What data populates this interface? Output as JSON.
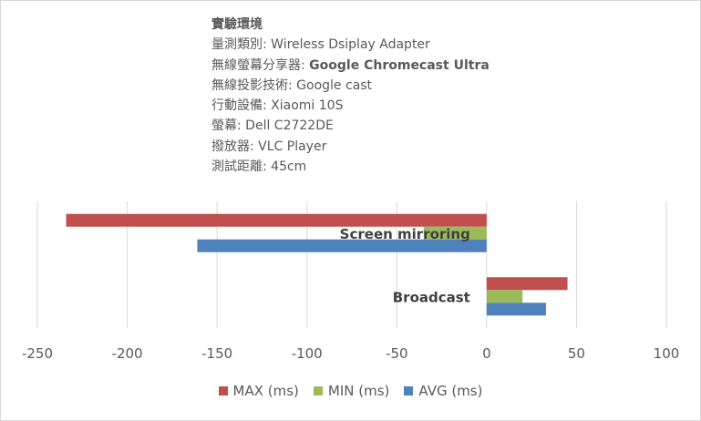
{
  "info": {
    "title": "實驗環境",
    "lines": [
      {
        "label": "量測類別: ",
        "value": "Wireless Dsiplay Adapter",
        "bold": false
      },
      {
        "label": "無線螢幕分享器: ",
        "value": "Google Chromecast Ultra",
        "bold": true
      },
      {
        "label": "無線投影技術: ",
        "value": "Google cast",
        "bold": false
      },
      {
        "label": "行動設備: ",
        "value": "Xiaomi 10S",
        "bold": false
      },
      {
        "label": "螢幕: ",
        "value": "Dell C2722DE",
        "bold": false
      },
      {
        "label": "撥放器: ",
        "value": "VLC Player",
        "bold": false
      },
      {
        "label": "測試距離: ",
        "value": "45cm",
        "bold": false
      }
    ]
  },
  "chart_data": {
    "type": "bar",
    "orientation": "horizontal",
    "categories": [
      "Screen mirroring",
      "Broadcast"
    ],
    "series": [
      {
        "name": "MAX (ms)",
        "color": "#c0504d",
        "values": [
          -234,
          45
        ]
      },
      {
        "name": "MIN (ms)",
        "color": "#9bbb59",
        "values": [
          -35,
          20
        ]
      },
      {
        "name": "AVG (ms)",
        "color": "#4f81bd",
        "values": [
          -161,
          33
        ]
      }
    ],
    "xlim": [
      -250,
      100
    ],
    "xticks": [
      -250,
      -200,
      -150,
      -100,
      -50,
      0,
      50,
      100
    ],
    "grid": true,
    "legend": "bottom",
    "label_color": "#404040",
    "grid_color": "#d9d9d9"
  }
}
